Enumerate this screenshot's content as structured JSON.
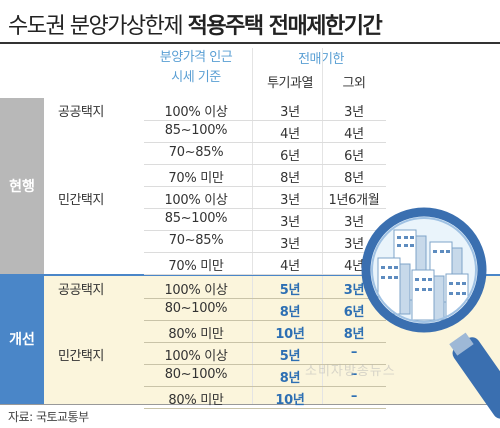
{
  "title": {
    "light": "수도권 분양가상한제 ",
    "bold": "적용주택 전매제한기간"
  },
  "header": {
    "price_basis_line1": "분양가격 인근",
    "price_basis_line2": "시세 기준",
    "resale_period": "전매기한",
    "speculative_zone": "투기과열",
    "other": "그외"
  },
  "sections": {
    "current": {
      "label": "현행",
      "groups": [
        {
          "name": "공공택지",
          "rows": [
            [
              "100% 이상",
              "3년",
              "3년"
            ],
            [
              "85~100%",
              "4년",
              "4년"
            ],
            [
              "70~85%",
              "6년",
              "6년"
            ],
            [
              "70% 미만",
              "8년",
              "8년"
            ]
          ]
        },
        {
          "name": "민간택지",
          "rows": [
            [
              "100% 이상",
              "3년",
              "1년6개월"
            ],
            [
              "85~100%",
              "3년",
              "3년"
            ],
            [
              "70~85%",
              "3년",
              "3년"
            ],
            [
              "70% 미만",
              "4년",
              "4년"
            ]
          ]
        }
      ]
    },
    "improved": {
      "label": "개선",
      "groups": [
        {
          "name": "공공택지",
          "rows": [
            [
              "100% 이상",
              "5년",
              "3년"
            ],
            [
              "80~100%",
              "8년",
              "6년"
            ],
            [
              "80% 미만",
              "10년",
              "8년"
            ]
          ]
        },
        {
          "name": "민간택지",
          "rows": [
            [
              "100% 이상",
              "5년",
              "–"
            ],
            [
              "80~100%",
              "8년",
              "–"
            ],
            [
              "80% 미만",
              "10년",
              "–"
            ]
          ]
        }
      ]
    }
  },
  "source": "자료: 국토교통부",
  "watermark": "소비자방송뉴스",
  "colors": {
    "accent_blue": "#4a86c8",
    "header_blue": "#5a9fd4",
    "current_tab": "#b8b8b8",
    "improved_bg": "#fbf5dc",
    "improved_text": "#2d6fb3"
  },
  "illustration": {
    "icon": "magnifying-glass-over-apartment-buildings-icon"
  }
}
